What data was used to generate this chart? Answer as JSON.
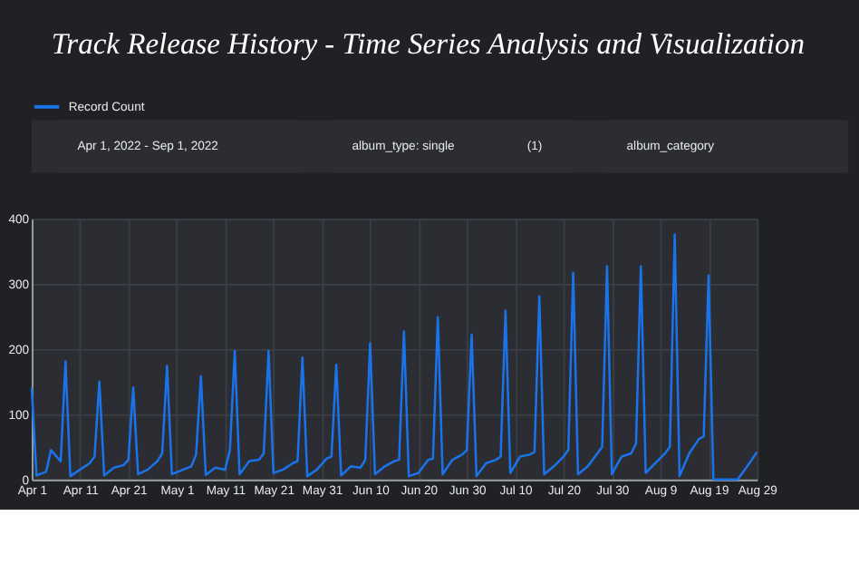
{
  "chart_data": {
    "type": "line",
    "title": "Track Release History - Time Series Analysis and Visualization",
    "annotations": [
      "Apr 1, 2022 - Sep 1, 2022",
      "album_type: single",
      "(1)",
      "album_category"
    ],
    "x": [
      "2022-04-01",
      "2022-04-02",
      "2022-04-04",
      "2022-04-05",
      "2022-04-07",
      "2022-04-08",
      "2022-04-09",
      "2022-04-11",
      "2022-04-13",
      "2022-04-14",
      "2022-04-15",
      "2022-04-16",
      "2022-04-18",
      "2022-04-20",
      "2022-04-21",
      "2022-04-22",
      "2022-04-23",
      "2022-04-25",
      "2022-04-27",
      "2022-04-28",
      "2022-04-29",
      "2022-04-30",
      "2022-05-02",
      "2022-05-04",
      "2022-05-05",
      "2022-05-06",
      "2022-05-07",
      "2022-05-09",
      "2022-05-11",
      "2022-05-12",
      "2022-05-13",
      "2022-05-14",
      "2022-05-16",
      "2022-05-18",
      "2022-05-19",
      "2022-05-20",
      "2022-05-21",
      "2022-05-23",
      "2022-05-25",
      "2022-05-26",
      "2022-05-27",
      "2022-05-28",
      "2022-05-30",
      "2022-06-01",
      "2022-06-02",
      "2022-06-03",
      "2022-06-04",
      "2022-06-06",
      "2022-06-08",
      "2022-06-09",
      "2022-06-10",
      "2022-06-11",
      "2022-06-13",
      "2022-06-15",
      "2022-06-16",
      "2022-06-17",
      "2022-06-18",
      "2022-06-20",
      "2022-06-22",
      "2022-06-23",
      "2022-06-24",
      "2022-06-25",
      "2022-06-27",
      "2022-06-29",
      "2022-06-30",
      "2022-07-01",
      "2022-07-02",
      "2022-07-04",
      "2022-07-06",
      "2022-07-07",
      "2022-07-08",
      "2022-07-09",
      "2022-07-11",
      "2022-07-13",
      "2022-07-14",
      "2022-07-15",
      "2022-07-16",
      "2022-07-18",
      "2022-07-20",
      "2022-07-21",
      "2022-07-22",
      "2022-07-23",
      "2022-07-25",
      "2022-07-27",
      "2022-07-28",
      "2022-07-29",
      "2022-07-30",
      "2022-08-01",
      "2022-08-03",
      "2022-08-04",
      "2022-08-05",
      "2022-08-06",
      "2022-08-08",
      "2022-08-10",
      "2022-08-11",
      "2022-08-12",
      "2022-08-13",
      "2022-08-15",
      "2022-08-17",
      "2022-08-18",
      "2022-08-19",
      "2022-08-20",
      "2022-08-25",
      "2022-08-27",
      "2022-08-29"
    ],
    "series": [
      {
        "name": "Record Count",
        "color": "#1a73e8",
        "values": [
          141,
          6,
          12,
          45,
          28,
          181,
          5,
          15,
          25,
          35,
          150,
          6,
          18,
          22,
          30,
          141,
          8,
          15,
          28,
          40,
          174,
          8,
          14,
          20,
          38,
          158,
          7,
          18,
          15,
          45,
          197,
          8,
          28,
          30,
          40,
          197,
          10,
          15,
          25,
          28,
          187,
          5,
          15,
          32,
          35,
          176,
          6,
          20,
          18,
          30,
          209,
          8,
          20,
          28,
          30,
          227,
          5,
          10,
          30,
          32,
          249,
          8,
          30,
          38,
          45,
          222,
          5,
          25,
          30,
          35,
          259,
          10,
          35,
          38,
          42,
          281,
          8,
          20,
          35,
          45,
          317,
          8,
          20,
          40,
          50,
          327,
          8,
          35,
          40,
          55,
          327,
          10,
          25,
          40,
          50,
          376,
          5,
          40,
          62,
          66,
          313,
          0,
          0,
          20,
          42
        ]
      }
    ],
    "xlim": [
      "2022-04-01",
      "2022-08-29"
    ],
    "xticks": [
      {
        "value": "2022-04-01",
        "label": "Apr 1"
      },
      {
        "value": "2022-04-11",
        "label": "Apr 11"
      },
      {
        "value": "2022-04-21",
        "label": "Apr 21"
      },
      {
        "value": "2022-05-01",
        "label": "May 1"
      },
      {
        "value": "2022-05-11",
        "label": "May 11"
      },
      {
        "value": "2022-05-21",
        "label": "May 21"
      },
      {
        "value": "2022-05-31",
        "label": "May 31"
      },
      {
        "value": "2022-06-10",
        "label": "Jun 10"
      },
      {
        "value": "2022-06-20",
        "label": "Jun 20"
      },
      {
        "value": "2022-06-30",
        "label": "Jun 30"
      },
      {
        "value": "2022-07-10",
        "label": "Jul 10"
      },
      {
        "value": "2022-07-20",
        "label": "Jul 20"
      },
      {
        "value": "2022-07-30",
        "label": "Jul 30"
      },
      {
        "value": "2022-08-09",
        "label": "Aug 9"
      },
      {
        "value": "2022-08-19",
        "label": "Aug 19"
      },
      {
        "value": "2022-08-29",
        "label": "Aug 29"
      }
    ],
    "ylim": [
      0,
      400
    ],
    "yticks": [
      0,
      100,
      200,
      300,
      400
    ],
    "grid": true,
    "legend": "top left",
    "marker": "none",
    "line_style": "solid"
  }
}
